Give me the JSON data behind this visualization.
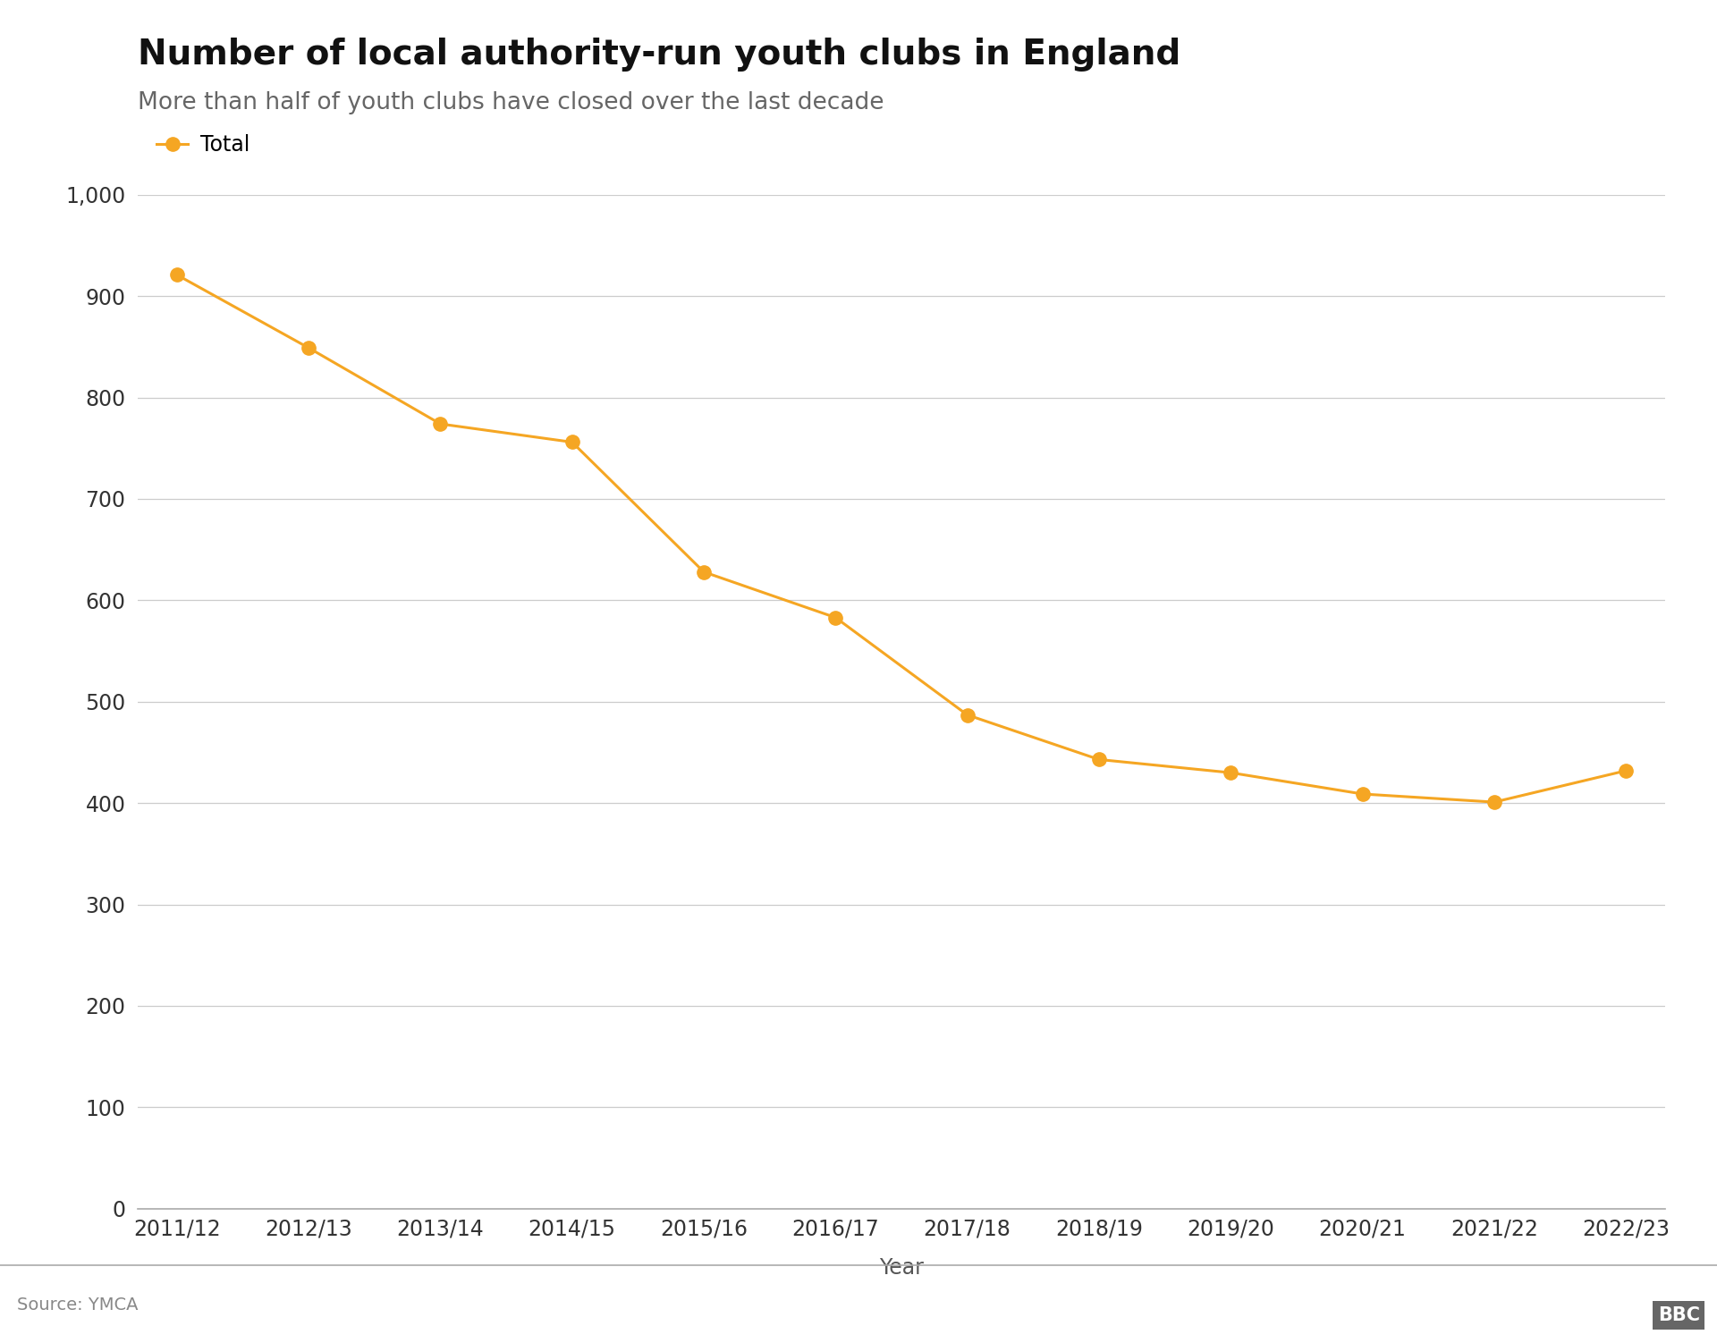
{
  "title": "Number of local authority-run youth clubs in England",
  "subtitle": "More than half of youth clubs have closed over the last decade",
  "source": "Source: YMCA",
  "xlabel": "Year",
  "ylabel": "",
  "legend_label": "Total",
  "line_color": "#F5A623",
  "marker_color": "#F5A623",
  "background_color": "#ffffff",
  "years": [
    "2011/12",
    "2012/13",
    "2013/14",
    "2014/15",
    "2015/16",
    "2016/17",
    "2017/18",
    "2018/19",
    "2019/20",
    "2020/21",
    "2021/22",
    "2022/23"
  ],
  "values": [
    921,
    849,
    774,
    756,
    628,
    583,
    487,
    443,
    430,
    409,
    401,
    432
  ],
  "ylim": [
    0,
    1000
  ],
  "yticks": [
    0,
    100,
    200,
    300,
    400,
    500,
    600,
    700,
    800,
    900,
    1000
  ],
  "title_fontsize": 28,
  "subtitle_fontsize": 19,
  "axis_label_fontsize": 17,
  "tick_fontsize": 17,
  "legend_fontsize": 17,
  "source_fontsize": 14,
  "line_width": 2.2,
  "marker_size": 11
}
